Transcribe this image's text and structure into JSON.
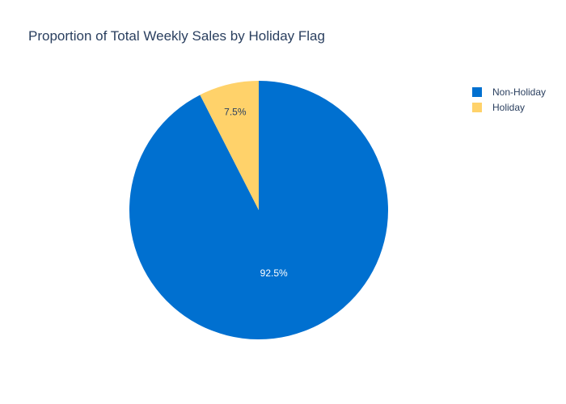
{
  "chart_data": {
    "type": "pie",
    "title": "Proportion of Total Weekly Sales by Holiday Flag",
    "labels": [
      "Non-Holiday",
      "Holiday"
    ],
    "values": [
      92.5,
      7.5
    ],
    "value_labels": [
      "92.5%",
      "7.5%"
    ],
    "colors": [
      "#0070d0",
      "#ffd26a"
    ],
    "label_colors": [
      "#ffffff",
      "#2a3f5f"
    ],
    "start_angle_deg": 0,
    "direction": "clockwise",
    "legend": {
      "placement": "top-right",
      "items": [
        {
          "label": "Non-Holiday",
          "color": "#0070d0"
        },
        {
          "label": "Holiday",
          "color": "#ffd26a"
        }
      ]
    }
  }
}
